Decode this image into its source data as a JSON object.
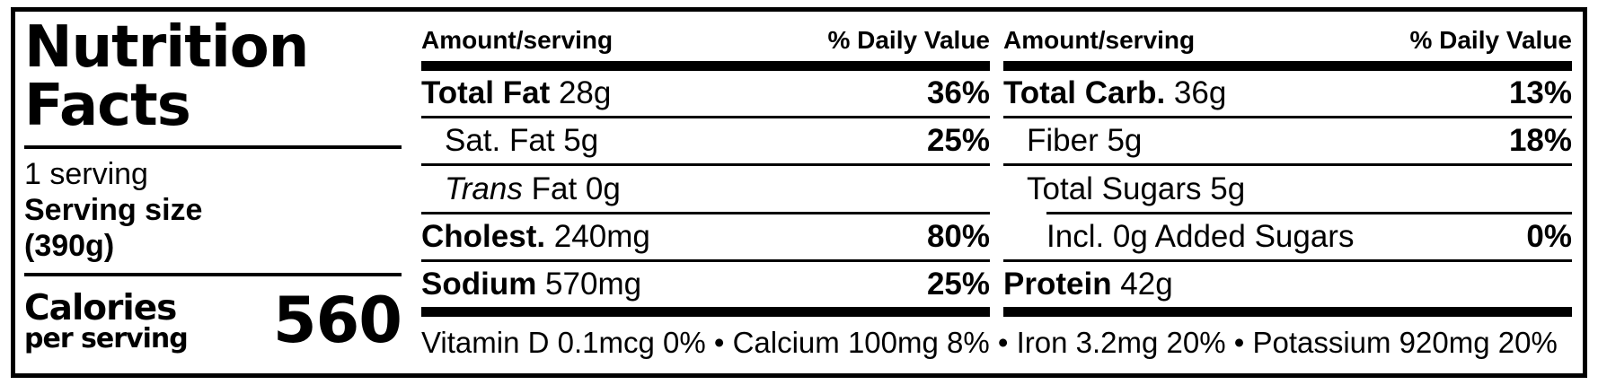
{
  "colors": {
    "ink": "#000000",
    "paper": "#ffffff"
  },
  "panel": {
    "title_line1": "Nutrition",
    "title_line2": "Facts",
    "servings_per_container": "1 serving",
    "serving_size_label": "Serving size",
    "serving_size_value": "(390g)",
    "calories_label": "Calories",
    "calories_sublabel": "per serving",
    "calories_value": "560"
  },
  "column_headers": {
    "amount": "Amount/serving",
    "daily_value": "% Daily Value"
  },
  "columns": [
    {
      "rows": [
        {
          "bold": "Total Fat",
          "italic": "",
          "text": " 28g",
          "dv": "36%"
        },
        {
          "bold": "",
          "italic": "",
          "text": "Sat. Fat 5g",
          "dv": "25%"
        },
        {
          "bold": "",
          "italic": "Trans",
          "text": " Fat 0g",
          "dv": ""
        },
        {
          "bold": "Cholest.",
          "italic": "",
          "text": " 240mg",
          "dv": "80%"
        },
        {
          "bold": "Sodium",
          "italic": "",
          "text": " 570mg",
          "dv": "25%"
        }
      ]
    },
    {
      "rows": [
        {
          "bold": "Total Carb.",
          "italic": "",
          "text": " 36g",
          "dv": "13%"
        },
        {
          "bold": "",
          "italic": "",
          "text": "Fiber 5g",
          "dv": "18%"
        },
        {
          "bold": "",
          "italic": "",
          "text": "Total Sugars 5g",
          "dv": ""
        },
        {
          "bold": "",
          "italic": "",
          "text": "Incl. 0g Added Sugars",
          "dv": "0%"
        },
        {
          "bold": "Protein",
          "italic": "",
          "text": " 42g",
          "dv": ""
        }
      ]
    }
  ],
  "footer_text": "Vitamin D 0.1mcg 0% • Calcium 100mg 8% • Iron 3.2mg 20% • Potassium 920mg 20%"
}
